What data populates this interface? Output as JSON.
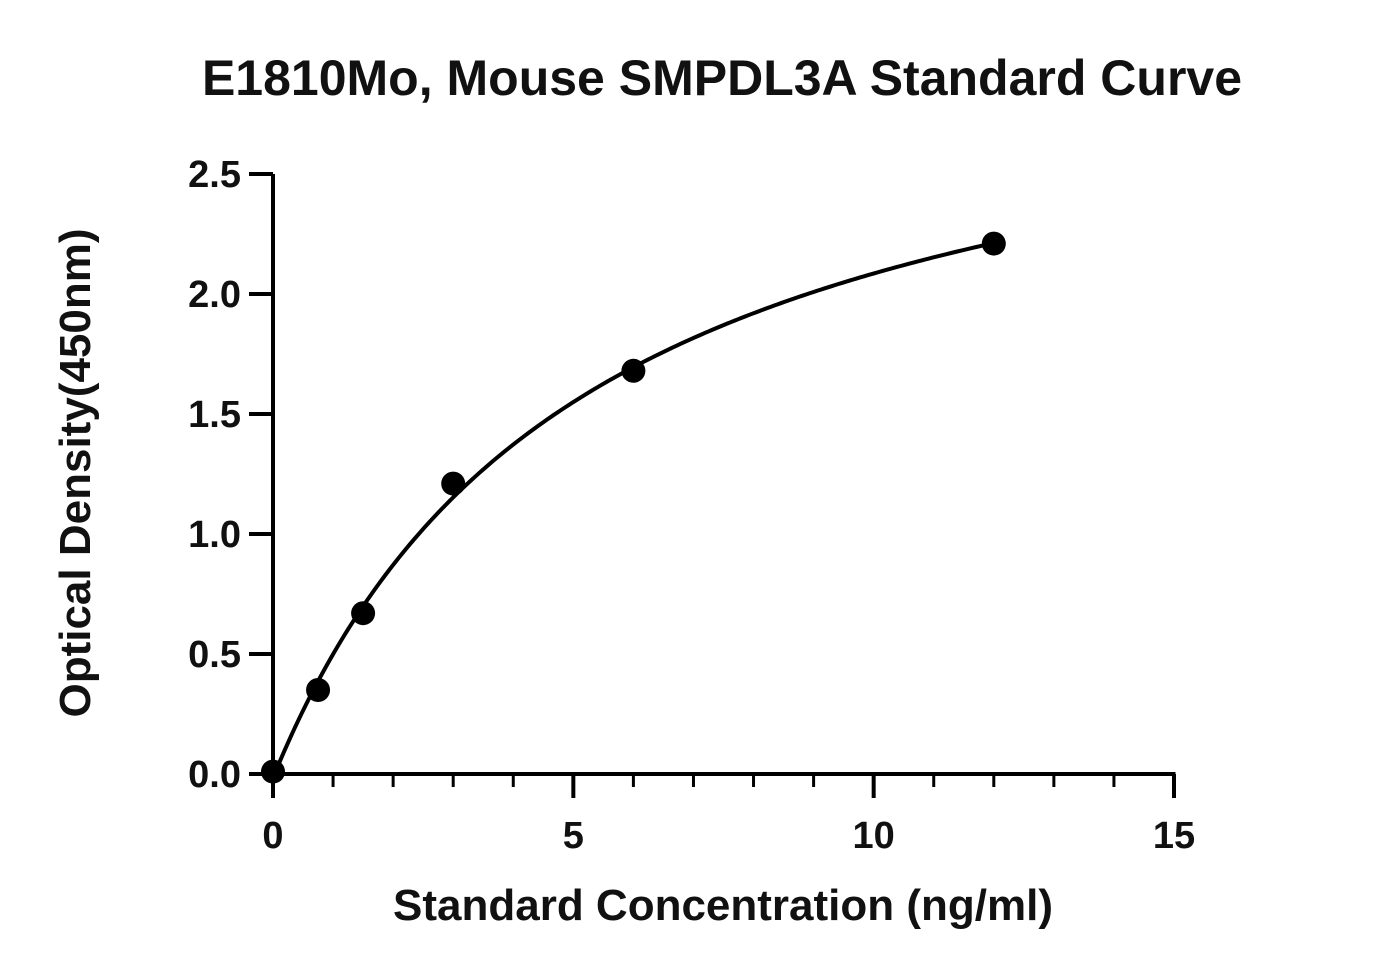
{
  "chart_data": {
    "type": "scatter",
    "title": "E1810Mo, Mouse SMPDL3A Standard Curve",
    "xlabel": "Standard Concentration (ng/ml)",
    "ylabel": "Optical Density(450nm)",
    "xlim": [
      0,
      15
    ],
    "ylim": [
      0,
      2.5
    ],
    "x_ticks": [
      0,
      5,
      10,
      15
    ],
    "x_tick_labels": [
      "0",
      "5",
      "10",
      "15"
    ],
    "x_minor_step": 1,
    "y_ticks": [
      0,
      0.5,
      1.0,
      1.5,
      2.0,
      2.5
    ],
    "y_tick_labels": [
      "0.0",
      "0.5",
      "1.0",
      "1.5",
      "2.0",
      "2.5"
    ],
    "grid": false,
    "series": [
      {
        "x": [
          0,
          0.75,
          1.5,
          3,
          6,
          12
        ],
        "y": [
          0.01,
          0.35,
          0.67,
          1.21,
          1.68,
          2.21
        ],
        "fit": "saturation-curve",
        "color": "#000000"
      }
    ]
  }
}
